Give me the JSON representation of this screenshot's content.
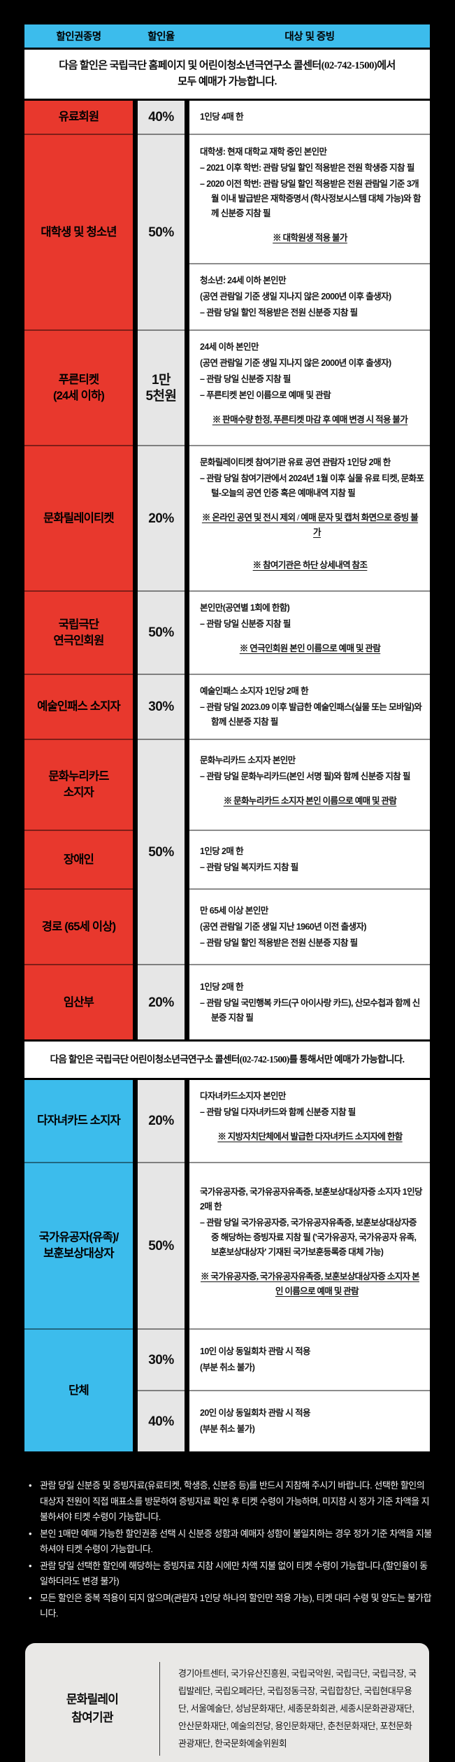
{
  "colors": {
    "red": "#E8382D",
    "blue": "#3CBCEC",
    "rate_bg": "#E6E6E6",
    "card_bg": "#E9E8E6"
  },
  "table_header": [
    "할인권종명",
    "할인율",
    "대상 및 증빙"
  ],
  "note1": "다음 할인은 국립극단 홈페이지 및 어린이청소년극연구소 콜센터(02-742-1500)에서\n모두 예매가 가능합니다.",
  "note2": "다음 할인은 국립극단 어린이청소년극연구소 콜센터(02-742-1500)를 통해서만 예매가 가능합니다.",
  "sections": [
    {
      "theme": "red",
      "bands": [
        {
          "cat": "유료회원",
          "rate": "40%",
          "cells": [
            {
              "lines": [
                {
                  "s": "head",
                  "t": "1인당 4매 한"
                }
              ]
            }
          ]
        },
        {
          "cat": "대학생 및 청소년",
          "rate": "50%",
          "cells": [
            {
              "lines": [
                {
                  "s": "head",
                  "t": "대학생: 현재 대학교 재학 중인 본인만"
                },
                {
                  "s": "dash",
                  "t": "– 2021 이후 학번: 관람 당일 할인 적용받은 전원 학생증 지참 필"
                },
                {
                  "s": "dash",
                  "t": "– 2020 이전 학번: 관람 당일 할인 적용받은 전원 관람일 기준 3개월 이내 발급받은 재학증명서 (학사정보시스템 대체 가능)와 함께 신분증 지참 필"
                },
                {
                  "s": "note",
                  "t": "※ 대학원생 적용 불가"
                }
              ]
            },
            {
              "lines": [
                {
                  "s": "head",
                  "t": "청소년: 24세 이하 본인만"
                },
                {
                  "s": "plain",
                  "t": "(공연 관람일 기준 생일 지나지 않은 2000년 이후 출생자)"
                },
                {
                  "s": "dash",
                  "t": "– 관람 당일 할인 적용받은 전원 신분증 지참 필"
                }
              ]
            }
          ]
        },
        {
          "cat": "푸른티켓\n(24세 이하)",
          "rate": "1만\n5천원",
          "cells": [
            {
              "lines": [
                {
                  "s": "head",
                  "t": "24세 이하 본인만"
                },
                {
                  "s": "plain",
                  "t": "(공연 관람일 기준 생일 지나지 않은 2000년 이후 출생자)"
                },
                {
                  "s": "dash",
                  "t": "– 관람 당일 신분증 지참 필"
                },
                {
                  "s": "dash",
                  "t": "– 푸른티켓 본인 이름으로 예매 및 관람"
                },
                {
                  "s": "note",
                  "t": "※ 판매수량 한정, 푸른티켓 마감 후 예매 변경 시 적용 불가"
                }
              ]
            }
          ]
        },
        {
          "cat": "문화릴레이티켓",
          "rate": "20%",
          "cells": [
            {
              "lines": [
                {
                  "s": "head",
                  "t": "문화릴레이티켓 참여기관 유료 공연 관람자 1인당 2매 한"
                },
                {
                  "s": "dash",
                  "t": "– 관람 당일 참여기관에서 2024년 1월 이후 실물 유료 티켓, 문화포털-오늘의 공연 인증 혹은 예매내역 지참 필"
                },
                {
                  "s": "note",
                  "t": "※ 온라인 공연 및 전시 제외 / 예매 문자 및 캡처 화면으로 증빙 불가"
                },
                {
                  "s": "note",
                  "t": "※ 참여기관은 하단 상세내역 참조"
                }
              ]
            }
          ]
        },
        {
          "cat": "국립극단\n연극인회원",
          "rate": "50%",
          "cells": [
            {
              "lines": [
                {
                  "s": "head",
                  "t": "본인만(공연별 1회에 한함)"
                },
                {
                  "s": "dash",
                  "t": "– 관람 당일 신분증 지참 필"
                },
                {
                  "s": "note",
                  "t": "※ 연극인회원 본인 이름으로 예매 및 관람"
                }
              ]
            }
          ]
        },
        {
          "cat": "예술인패스 소지자",
          "rate": "30%",
          "cells": [
            {
              "lines": [
                {
                  "s": "head",
                  "t": "예술인패스 소지자 1인당 2매 한"
                },
                {
                  "s": "dash",
                  "t": "– 관람 당일 2023.09 이후 발급한 예술인패스(실물 또는 모바일)와 함께 신분증 지참 필"
                }
              ]
            }
          ]
        },
        {
          "cat": "문화누리카드\n소지자",
          "rate": "50%",
          "rateSpan": 3,
          "cells": [
            {
              "lines": [
                {
                  "s": "head",
                  "t": "문화누리카드 소지자 본인만"
                },
                {
                  "s": "dash",
                  "t": "– 관람 당일 문화누리카드(본인 서명 필)와 함께 신분증 지참 필"
                },
                {
                  "s": "note",
                  "t": "※ 문화누리카드 소지자 본인 이름으로 예매 및 관람"
                }
              ]
            }
          ]
        },
        {
          "cat": "장애인",
          "rate": null,
          "cells": [
            {
              "lines": [
                {
                  "s": "head",
                  "t": "1인당 2매 한"
                },
                {
                  "s": "dash",
                  "t": "– 관람 당일 복지카드 지참 필"
                }
              ]
            }
          ]
        },
        {
          "cat": "경로 (65세 이상)",
          "rate": null,
          "cells": [
            {
              "lines": [
                {
                  "s": "head",
                  "t": "만 65세 이상 본인만"
                },
                {
                  "s": "plain",
                  "t": "(공연 관람일 기준 생일 지난 1960년 이전 출생자)"
                },
                {
                  "s": "dash",
                  "t": "– 관람 당일 할인 적용받은 전원 신분증 지참 필"
                }
              ]
            }
          ]
        },
        {
          "cat": "임산부",
          "rate": "20%",
          "cells": [
            {
              "lines": [
                {
                  "s": "head",
                  "t": "1인당 2매 한"
                },
                {
                  "s": "dash",
                  "t": "– 관람 당일 국민행복 카드(구 아이사랑 카드), 산모수첩과 함께 신분증 지참 필"
                }
              ]
            }
          ]
        }
      ]
    },
    {
      "theme": "blue",
      "bands": [
        {
          "cat": "다자녀카드 소지자",
          "rate": "20%",
          "cells": [
            {
              "lines": [
                {
                  "s": "head",
                  "t": "다자녀카드소지자 본인만"
                },
                {
                  "s": "dash",
                  "t": "– 관람 당일 다자녀카드와 함께 신분증 지참 필"
                },
                {
                  "s": "note",
                  "t": "※ 지방자치단체에서 발급한 다자녀카드 소지자에 한함"
                }
              ]
            }
          ]
        },
        {
          "cat": "국가유공자(유족)/\n보훈보상대상자",
          "rate": "50%",
          "cells": [
            {
              "lines": [
                {
                  "s": "head",
                  "t": "국가유공자증, 국가유공자유족증, 보훈보상대상자증 소지자 1인당 2매 한"
                },
                {
                  "s": "dash",
                  "t": "– 관람 당일 국가유공자증, 국가유공자유족증, 보훈보상대상자증 중 해당하는 증빙자료 지참 필 ('국가유공자, 국가유공자 유족, 보훈보상대상자' 기재된 국가보훈등록증 대체 가능)"
                },
                {
                  "s": "note",
                  "t": "※ 국가유공자증, 국가유공자유족증, 보훈보상대상자증 소지자 본인 이름으로 예매 및 관람"
                }
              ]
            }
          ]
        },
        {
          "cat": "단체",
          "catSpan": 2,
          "rate": "30%",
          "cells": [
            {
              "lines": [
                {
                  "s": "head",
                  "t": "10인 이상 동일회차 관람 시 적용"
                },
                {
                  "s": "plain",
                  "t": "(부분 취소 불가)"
                }
              ]
            }
          ]
        },
        {
          "cat": null,
          "rate": "40%",
          "cells": [
            {
              "lines": [
                {
                  "s": "head",
                  "t": "20인 이상 동일회차 관람 시 적용"
                },
                {
                  "s": "plain",
                  "t": "(부분 취소 불가)"
                }
              ]
            }
          ]
        }
      ]
    }
  ],
  "notices": [
    "관람 당일 신분증 및 증빙자료(유료티켓, 학생증, 신분증 등)를 반드시 지참해 주시기 바랍니다. 선택한 할인의 대상자 전원이 직접 매표소를 방문하여 증빙자료 확인 후 티켓 수령이 가능하며, 미지참 시 정가 기준 차액을 지불하셔야 티켓 수령이 가능합니다.",
    "본인 1매만 예매 가능한 할인권종 선택 시 신분증 성함과 예매자 성함이 불일치하는 경우 정가 기준 차액을 지불하셔야 티켓 수령이 가능합니다.",
    "관람 당일 선택한 할인에 해당하는 증빙자료 지참 시에만 차액 지불 없이 티켓 수령이 가능합니다.(할인율이 동일하더라도 변경 불가)",
    "모든 할인은 중복 적용이 되지 않으며(관람자 1인당 하나의 할인만 적용 가능), 티켓 대리 수령 및 양도는 불가합니다."
  ],
  "partners": {
    "title": "문화릴레이\n참여기관",
    "orgs": "경기아트센터, 국가유산진흥원, 국립국악원, 국립극단, 국립극장, 국립발레단, 국립오페라단, 국립정동극장, 국립합창단, 국립현대무용단, 서울예술단, 성남문화재단, 세종문화회관, 세종시문화관광재단, 안산문화재단, 예술의전당, 용인문화재단, 춘천문화재단, 포천문화관광재단, 한국문화예술위원회"
  }
}
